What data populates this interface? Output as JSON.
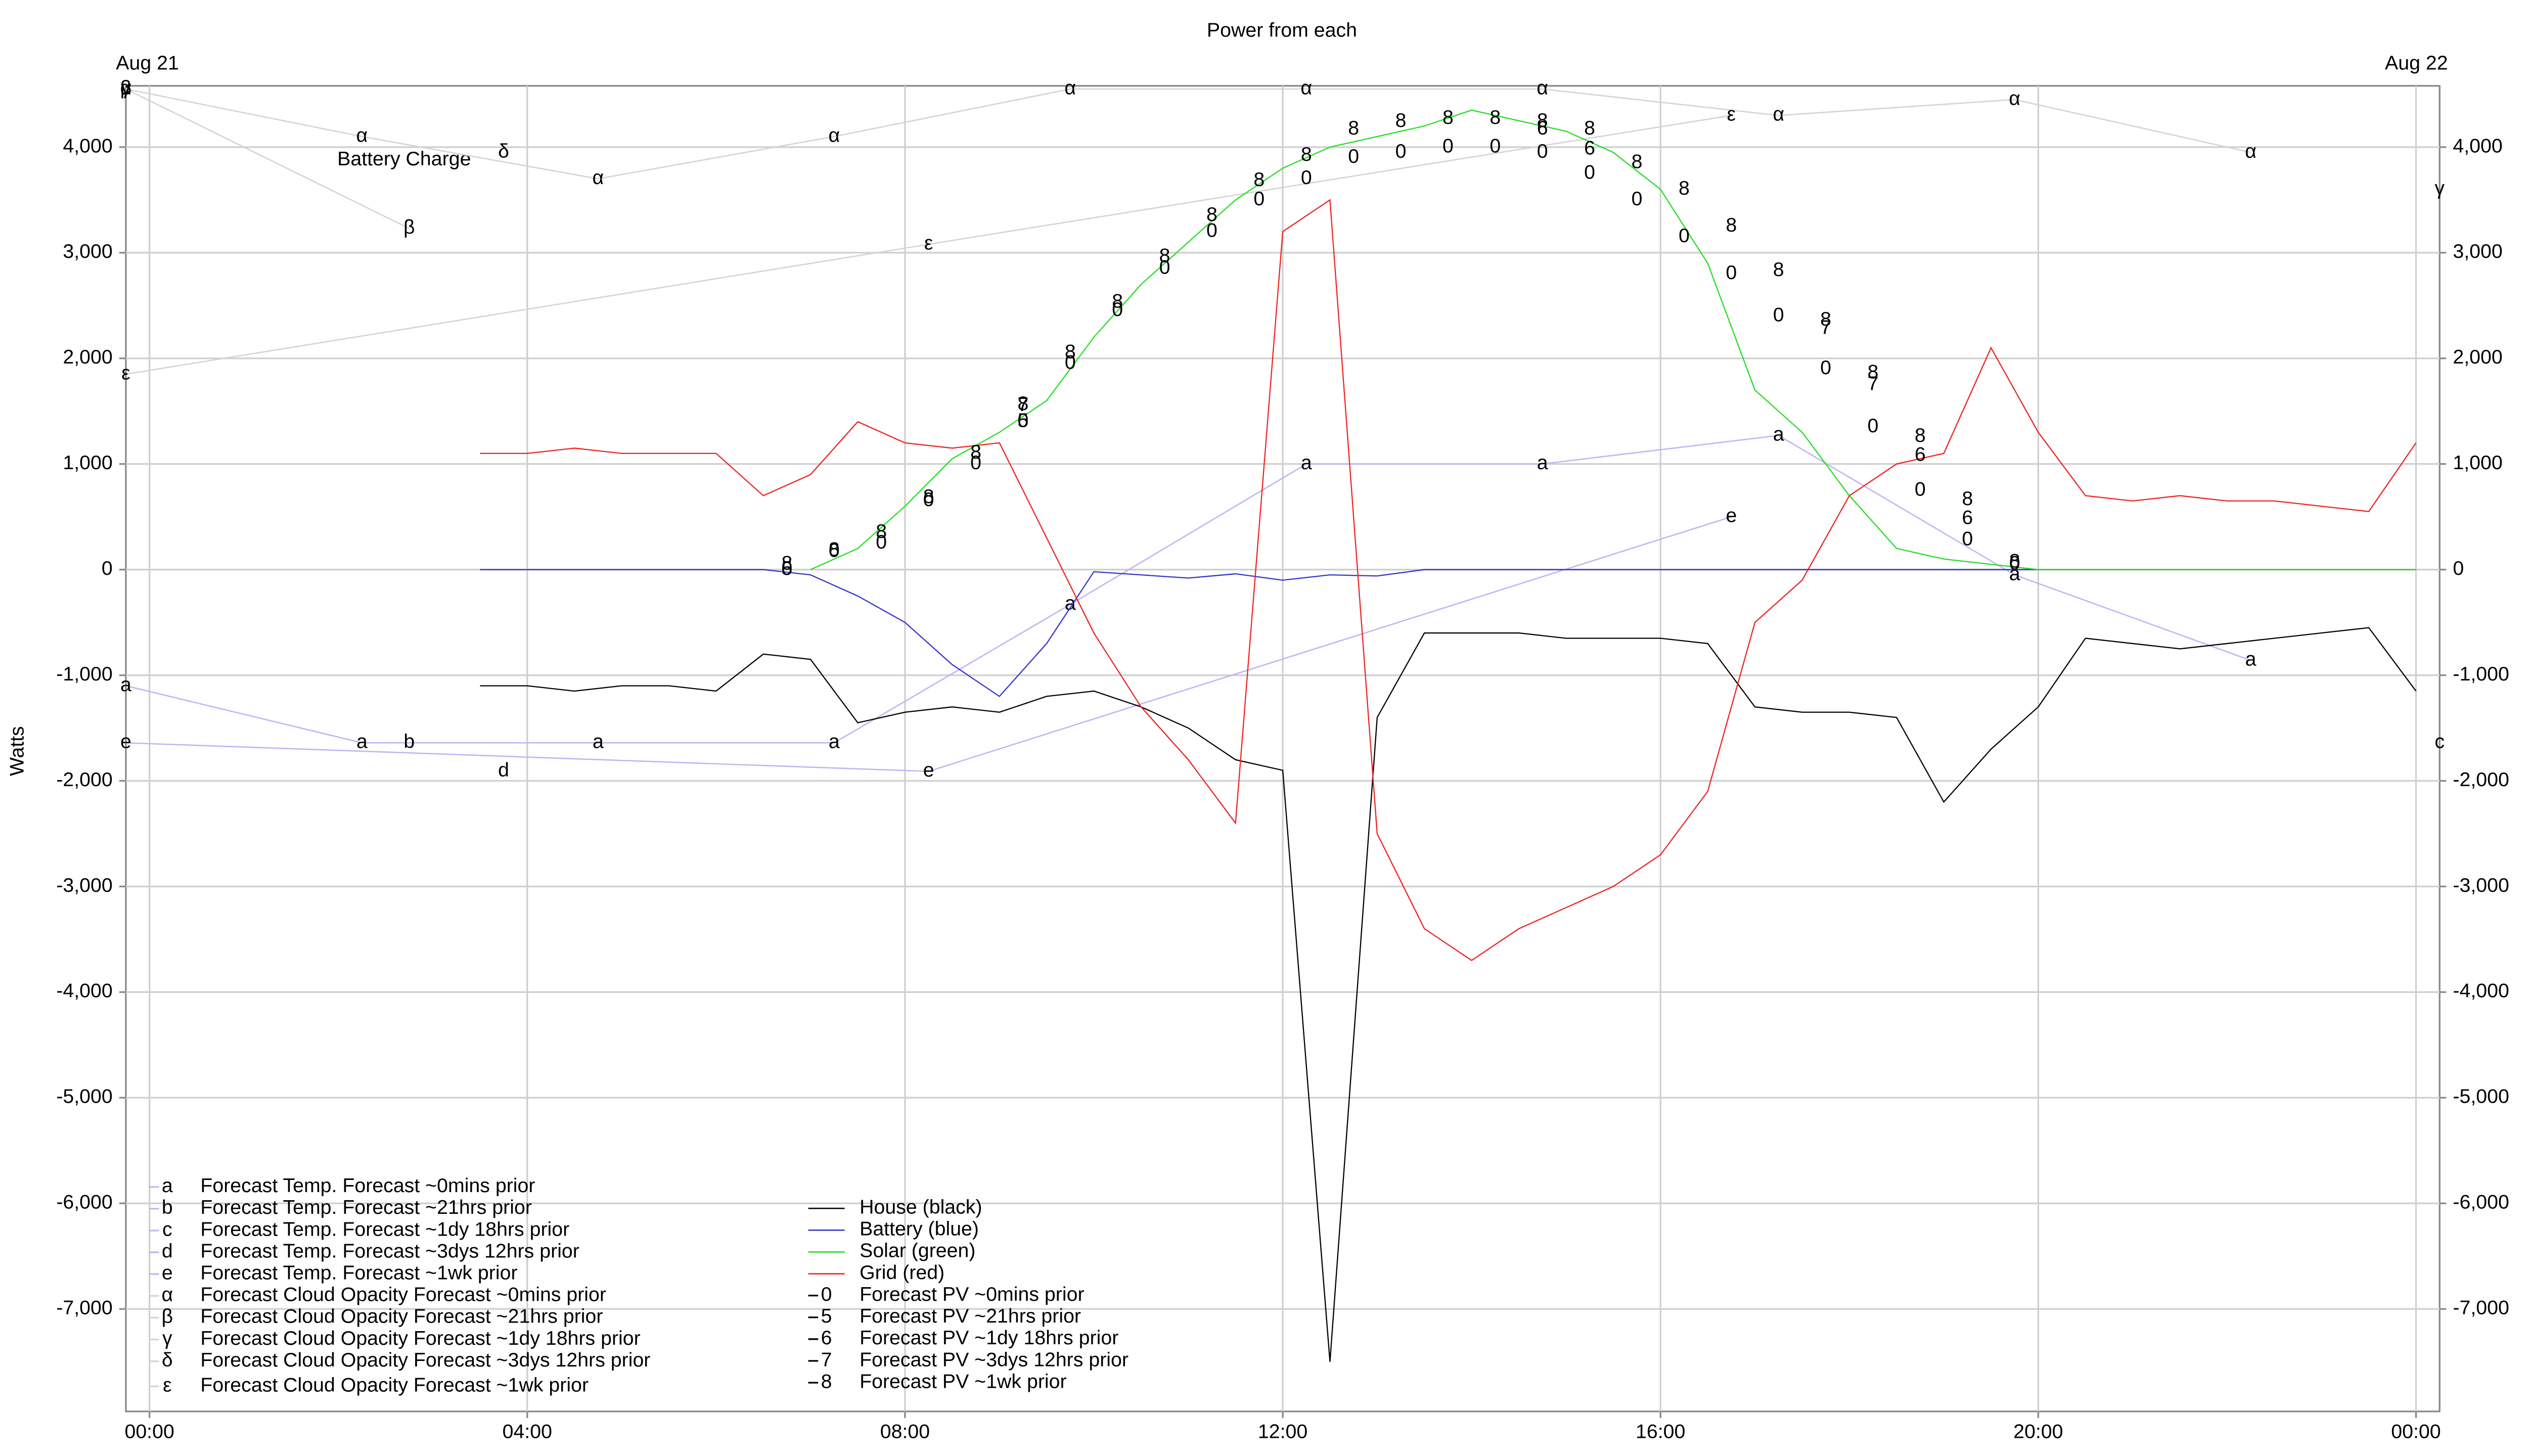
{
  "chart_data": {
    "type": "line",
    "title": "Power from each",
    "date_labels": [
      "Aug 21",
      "Aug 22"
    ],
    "y_label": "Watts",
    "annotation": "Battery Charge",
    "grid": true,
    "legend": "lower left",
    "xlim": [
      -0.25,
      24.25
    ],
    "ylim": [
      -7970,
      4580
    ],
    "xticks": [
      {
        "value": 0,
        "label": "00:00"
      },
      {
        "value": 4,
        "label": "04:00"
      },
      {
        "value": 8,
        "label": "08:00"
      },
      {
        "value": 12,
        "label": "12:00"
      },
      {
        "value": 16,
        "label": "16:00"
      },
      {
        "value": 20,
        "label": "20:00"
      },
      {
        "value": 24,
        "label": "00:00"
      }
    ],
    "yticks": [
      {
        "value": -7000,
        "label": "-7,000"
      },
      {
        "value": -6000,
        "label": "-6,000"
      },
      {
        "value": -5000,
        "label": "-5,000"
      },
      {
        "value": -4000,
        "label": "-4,000"
      },
      {
        "value": -3000,
        "label": "-3,000"
      },
      {
        "value": -2000,
        "label": "-2,000"
      },
      {
        "value": -1000,
        "label": "-1,000"
      },
      0,
      {
        "value": 1000,
        "label": "1,000"
      },
      {
        "value": 2000,
        "label": "2,000"
      },
      {
        "value": 3000,
        "label": "3,000"
      },
      {
        "value": 4000,
        "label": "4,000"
      }
    ],
    "x": [
      0,
      0.5,
      1,
      1.5,
      2,
      2.5,
      3,
      3.5,
      4,
      4.5,
      5,
      5.5,
      6,
      6.5,
      7,
      7.5,
      8,
      8.5,
      9,
      9.5,
      10,
      10.5,
      11,
      11.5,
      12,
      12.5,
      13,
      13.5,
      14,
      14.5,
      15,
      15.5,
      16,
      16.5,
      17,
      17.5,
      18,
      18.5,
      19,
      19.5,
      20,
      20.5,
      21,
      21.5,
      22,
      22.5,
      23,
      23.5,
      24
    ],
    "series": [
      {
        "name": "Forecast Temp. Forecast ~0mins prior",
        "marker": "a",
        "color": "#c4b4f4",
        "show_line": true,
        "x": [
          -0.25,
          2.25,
          4.75,
          7.25,
          9.75,
          12.25,
          14.75,
          17.25,
          19.75,
          22.25
        ],
        "values": [
          -1100,
          -1640,
          -1640,
          -1640,
          -330,
          1000,
          1000,
          1270,
          -50,
          -860
        ]
      },
      {
        "name": "Forecast Temp. Forecast ~21hrs prior",
        "marker": "b",
        "color": "#c4b4f4",
        "show_line": false,
        "x": [
          2.75
        ],
        "values": [
          -1640
        ]
      },
      {
        "name": "Forecast Temp. Forecast ~1dy 18hrs prior",
        "marker": "c",
        "color": "#c4b4f4",
        "show_line": false,
        "x": [
          24.25
        ],
        "values": [
          -1640
        ]
      },
      {
        "name": "Forecast Temp. Forecast ~3dys 12hrs prior",
        "marker": "d",
        "color": "#c4b4f4",
        "show_line": false,
        "x": [
          3.75
        ],
        "values": [
          -1910
        ]
      },
      {
        "name": "Forecast Temp. Forecast ~1wk prior",
        "marker": "e",
        "color": "#c4b4f4",
        "show_line": true,
        "x": [
          -0.25,
          8.25,
          16.75
        ],
        "values": [
          -1640,
          -1910,
          500
        ]
      },
      {
        "name": "Forecast Cloud Opacity Forecast ~0mins prior",
        "marker": "α",
        "color": "#d4d4d4",
        "show_line": true,
        "x": [
          -0.25,
          2.25,
          4.75,
          7.25,
          9.75,
          12.25,
          14.75,
          17.25,
          19.75,
          22.25
        ],
        "values": [
          4550,
          4100,
          3700,
          4100,
          4550,
          4550,
          4550,
          4300,
          4450,
          3950
        ]
      },
      {
        "name": "Forecast Cloud Opacity Forecast ~21hrs prior",
        "marker": "β",
        "color": "#d4d4d4",
        "show_line": true,
        "x": [
          -0.25,
          2.75
        ],
        "values": [
          4550,
          3230
        ]
      },
      {
        "name": "Forecast Cloud Opacity Forecast ~1dy 18hrs prior",
        "marker": "γ",
        "color": "#d4d4d4",
        "show_line": false,
        "x": [
          -0.25,
          24.25
        ],
        "values": [
          4550,
          3600
        ]
      },
      {
        "name": "Forecast Cloud Opacity Forecast ~3dys 12hrs prior",
        "marker": "δ",
        "color": "#d4d4d4",
        "show_line": false,
        "x": [
          3.75
        ],
        "values": [
          3950
        ]
      },
      {
        "name": "Forecast Cloud Opacity Forecast ~1wk prior",
        "marker": "ε",
        "color": "#d4d4d4",
        "show_line": true,
        "x": [
          -0.25,
          8.25,
          16.75
        ],
        "values": [
          1850,
          3080,
          4300
        ]
      },
      {
        "name": "House (black)",
        "color": "#000000",
        "show_line": true,
        "values": [
          null,
          null,
          null,
          null,
          null,
          null,
          null,
          -1100,
          -1100,
          -1150,
          -1100,
          -1100,
          -1150,
          -800,
          -850,
          -1450,
          -1350,
          -1300,
          -1350,
          -1200,
          -1150,
          -1300,
          -1500,
          -1800,
          -1900,
          -7500,
          -1400,
          -600,
          -600,
          -600,
          -650,
          -650,
          -650,
          -700,
          -1300,
          -1350,
          -1350,
          -1400,
          -2200,
          -1700,
          -1300,
          -650,
          -700,
          -750,
          -700,
          -650,
          -600,
          -550,
          -1150
        ]
      },
      {
        "name": "Battery (blue)",
        "color": "#3333cc",
        "show_line": true,
        "values": [
          null,
          null,
          null,
          null,
          null,
          null,
          null,
          0,
          0,
          0,
          0,
          0,
          0,
          0,
          -50,
          -250,
          -500,
          -900,
          -1200,
          -700,
          -20,
          -50,
          -80,
          -40,
          -100,
          -50,
          -60,
          0,
          0,
          0,
          0,
          0,
          0,
          0,
          0,
          0,
          0,
          0,
          0,
          0,
          0,
          0,
          0,
          0,
          0,
          0,
          0,
          0,
          0
        ]
      },
      {
        "name": "Solar (green)",
        "color": "#22dd22",
        "show_line": true,
        "values": [
          null,
          null,
          null,
          null,
          null,
          null,
          null,
          null,
          null,
          null,
          null,
          null,
          null,
          null,
          0,
          200,
          600,
          1050,
          1300,
          1600,
          2200,
          2700,
          3100,
          3500,
          3800,
          4000,
          4100,
          4200,
          4350,
          4250,
          4150,
          3950,
          3600,
          2900,
          1700,
          1300,
          700,
          200,
          100,
          50,
          0,
          0,
          0,
          0,
          0,
          0,
          0,
          0,
          0
        ]
      },
      {
        "name": "Grid (red)",
        "color": "#ee2222",
        "show_line": true,
        "values": [
          null,
          null,
          null,
          null,
          null,
          null,
          null,
          1100,
          1100,
          1150,
          1100,
          1100,
          1100,
          700,
          900,
          1400,
          1200,
          1150,
          1200,
          300,
          -600,
          -1300,
          -1800,
          -2400,
          3200,
          3500,
          -2500,
          -3400,
          -3700,
          -3400,
          -3200,
          -3000,
          -2700,
          -2100,
          -500,
          -100,
          700,
          1000,
          1100,
          2100,
          1300,
          700,
          650,
          700,
          650,
          650,
          600,
          550,
          1200
        ]
      },
      {
        "name": "Forecast PV ~0mins prior",
        "marker": "0",
        "color": "#000000",
        "show_line": false,
        "x": [
          6.75,
          7.25,
          7.75,
          8.25,
          8.75,
          9.25,
          9.75,
          10.25,
          10.75,
          11.25,
          11.75,
          12.25,
          12.75,
          13.25,
          13.75,
          14.25,
          14.75,
          15.25,
          15.75,
          16.25,
          16.75,
          17.25,
          17.75,
          18.25,
          18.75,
          19.25,
          19.75
        ],
        "values": [
          0,
          170,
          250,
          650,
          1000,
          1400,
          1950,
          2450,
          2850,
          3200,
          3500,
          3700,
          3900,
          3950,
          4000,
          4000,
          3950,
          3750,
          3500,
          3150,
          2800,
          2400,
          1900,
          1350,
          750,
          280,
          50
        ]
      },
      {
        "name": "Forecast PV ~21hrs prior",
        "marker": "5",
        "color": "#000000",
        "show_line": false,
        "x": [
          6.75,
          9.25
        ],
        "values": [
          0,
          1400
        ]
      },
      {
        "name": "Forecast PV ~1dy 18hrs prior",
        "marker": "6",
        "color": "#000000",
        "show_line": false,
        "x": [
          14.75,
          15.25,
          18.75,
          19.25
        ],
        "values": [
          4170,
          3980,
          1080,
          480
        ]
      },
      {
        "name": "Forecast PV ~3dys 12hrs prior",
        "marker": "7",
        "color": "#000000",
        "show_line": false,
        "x": [
          9.25,
          17.75,
          18.25
        ],
        "values": [
          1550,
          2280,
          1750
        ]
      },
      {
        "name": "Forecast PV ~1wk prior",
        "marker": "8",
        "color": "#000000",
        "show_line": false,
        "x": [
          6.75,
          7.25,
          7.75,
          8.25,
          8.75,
          9.25,
          9.75,
          10.25,
          10.75,
          11.25,
          11.75,
          12.25,
          12.75,
          13.25,
          13.75,
          14.25,
          14.75,
          15.25,
          15.75,
          16.25,
          16.75,
          17.25,
          17.75,
          18.25,
          18.75,
          19.25,
          19.75
        ],
        "values": [
          50,
          180,
          350,
          680,
          1100,
          1560,
          2050,
          2530,
          2960,
          3350,
          3680,
          3920,
          4170,
          4240,
          4270,
          4270,
          4240,
          4170,
          3850,
          3600,
          3250,
          2830,
          2360,
          1860,
          1260,
          660,
          70
        ]
      }
    ]
  }
}
